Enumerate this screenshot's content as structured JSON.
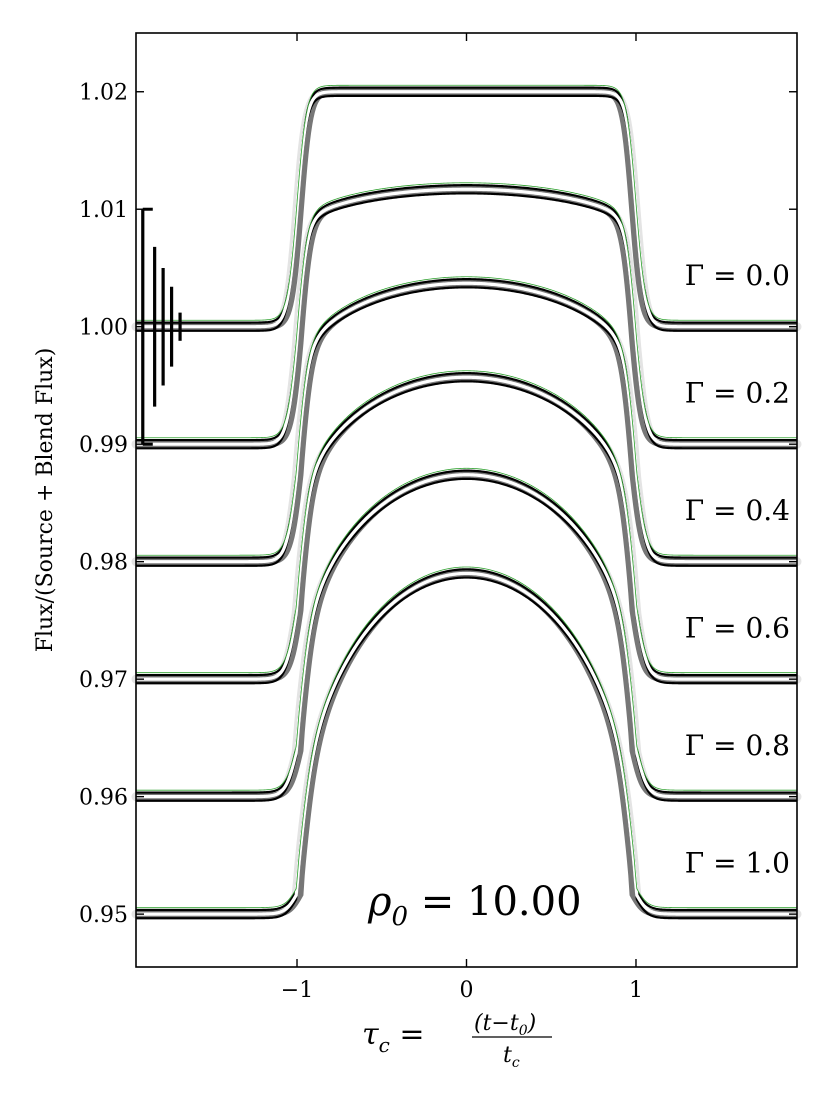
{
  "chart_data": {
    "type": "line",
    "xlabel": "τc = (t−t0) / tc",
    "xlabel_parts": {
      "lhs": "τ",
      "lhs_sub": "c",
      "eq": " = ",
      "num": "(t−t",
      "num_sub": "0",
      "num_close": ")",
      "den": "t",
      "den_sub": "c"
    },
    "ylabel": "Flux/(Source + Blend Flux)",
    "xlim": [
      -1.95,
      1.95
    ],
    "ylim": [
      0.9455,
      1.025
    ],
    "x_ticks": [
      -1,
      0,
      1
    ],
    "x_tick_labels": [
      "−1",
      "0",
      "1"
    ],
    "y_ticks": [
      0.95,
      0.96,
      0.97,
      0.98,
      0.99,
      1.0,
      1.01,
      1.02
    ],
    "y_tick_labels": [
      "0.95",
      "0.96",
      "0.97",
      "0.98",
      "0.99",
      "1.00",
      "1.01",
      "1.02"
    ],
    "annotation": "ρ0 = 10.00",
    "annotation_parts": {
      "sym": "ρ",
      "sub": "0",
      "rest": " = 10.00"
    },
    "grid": false,
    "series": [
      {
        "name": "Γ = 0.0",
        "gamma": 0.0,
        "baseline": 1.0,
        "peak": 1.02
      },
      {
        "name": "Γ = 0.2",
        "gamma": 0.2,
        "baseline": 0.99,
        "peak": 1.0117
      },
      {
        "name": "Γ = 0.4",
        "gamma": 0.4,
        "baseline": 0.98,
        "peak": 1.0037
      },
      {
        "name": "Γ = 0.6",
        "gamma": 0.6,
        "baseline": 0.97,
        "peak": 0.9957
      },
      {
        "name": "Γ = 0.8",
        "gamma": 0.8,
        "baseline": 0.96,
        "peak": 0.9874
      },
      {
        "name": "Γ = 1.0",
        "gamma": 1.0,
        "baseline": 0.95,
        "peak": 0.979
      }
    ],
    "error_bars": [
      {
        "x": -1.91,
        "half_height": 0.01
      },
      {
        "x": -1.84,
        "half_height": 0.0068
      },
      {
        "x": -1.79,
        "half_height": 0.005
      },
      {
        "x": -1.74,
        "half_height": 0.0034
      },
      {
        "x": -1.69,
        "half_height": 0.0012
      }
    ],
    "colors": {
      "dark": "#000000",
      "mid": "#777777",
      "light": "#e4e4e4",
      "model": "#2ca02c"
    }
  }
}
